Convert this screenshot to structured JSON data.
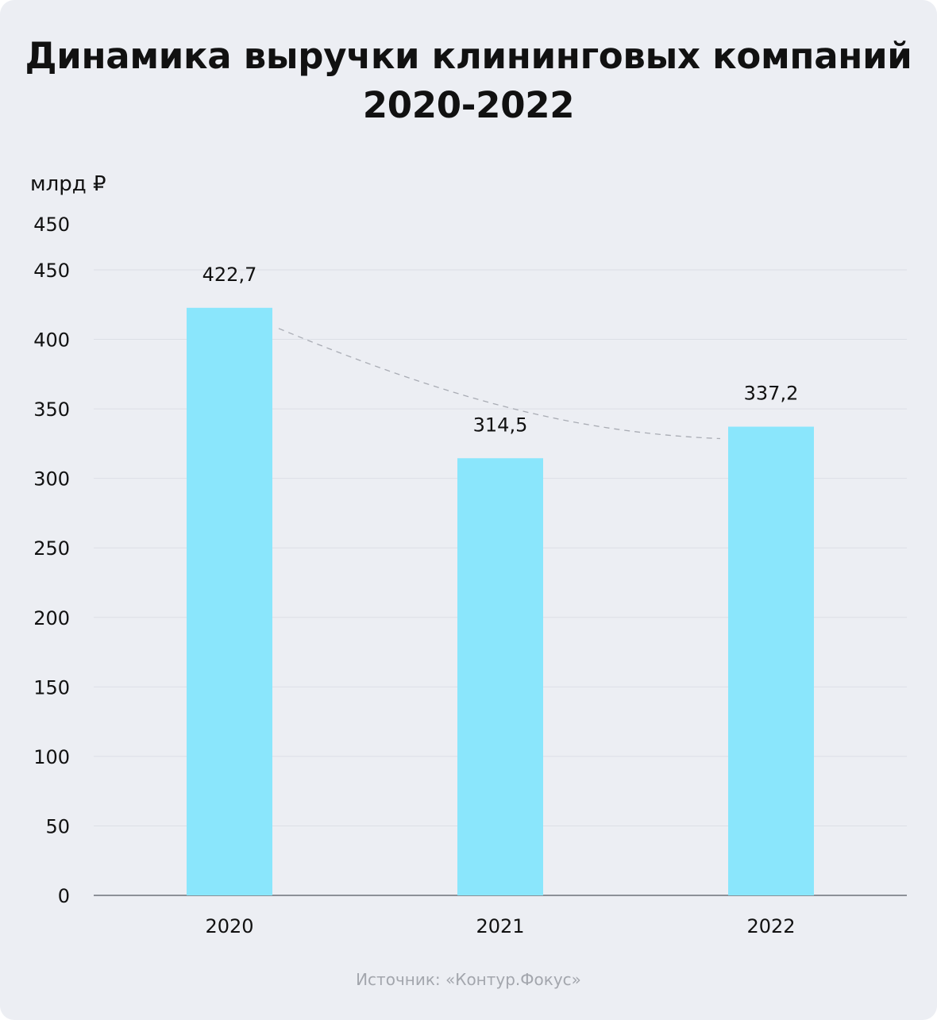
{
  "title": {
    "line1": "Динамика выручки клининговых компаний",
    "line2": "2020-2022"
  },
  "source": "Источник: «Контур.Фокус»",
  "colors": {
    "bar": "#8ae6fc",
    "grid": "#dcdfe6",
    "axis": "#6d7079",
    "text": "#111111",
    "trend": "#a9acb4",
    "source": "#a3a6ad"
  },
  "chart_data": {
    "type": "bar",
    "title": "Динамика выручки клининговых компаний 2020-2022",
    "ylabel": "млрд ₽",
    "xlabel": "",
    "categories": [
      "2020",
      "2021",
      "2022"
    ],
    "values": [
      422.7,
      314.5,
      337.2
    ],
    "value_labels": [
      "422,7",
      "314,5",
      "337,2"
    ],
    "ylim": [
      0,
      450
    ],
    "yticks": [
      0,
      50,
      100,
      150,
      200,
      250,
      300,
      350,
      400,
      450
    ],
    "ytick_labels": [
      "0",
      "50",
      "100",
      "150",
      "200",
      "250",
      "300",
      "350",
      "400",
      "450"
    ],
    "extra_top_label": "450",
    "grid": true,
    "legend": "none",
    "trendline": "dashed"
  }
}
